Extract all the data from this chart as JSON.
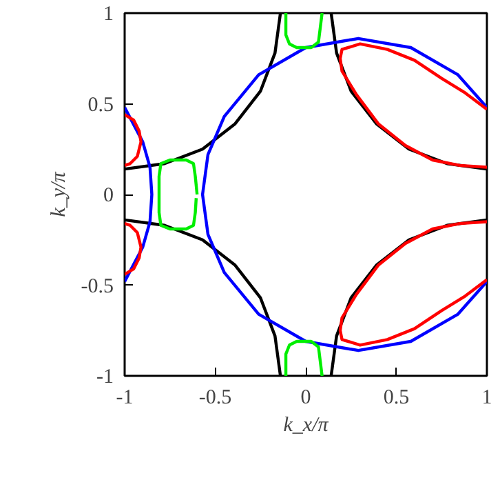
{
  "chart_data": {
    "type": "line",
    "xlabel": "k_x/π",
    "ylabel": "k_y/π",
    "xlim": [
      -1,
      1
    ],
    "ylim": [
      -1,
      1
    ],
    "xticks": [
      -1,
      -0.5,
      0,
      0.5,
      1
    ],
    "yticks": [
      -1,
      -0.5,
      0,
      0.5,
      1
    ],
    "grid": false,
    "marker": "none",
    "line_style": "solid",
    "series": [
      {
        "color": "#000000",
        "x": [
          -1,
          -0.78,
          -0.57,
          -0.39,
          -0.25,
          -0.17,
          -0.14,
          null,
          1,
          0.78,
          0.57,
          0.39,
          0.25,
          0.17,
          0.14,
          null,
          -1,
          -0.78,
          -0.57,
          -0.39,
          -0.25,
          -0.17,
          -0.14,
          null,
          1,
          0.78,
          0.57,
          0.39,
          0.25,
          0.17,
          0.14
        ],
        "values": [
          0.14,
          0.17,
          0.25,
          0.39,
          0.57,
          0.78,
          1,
          null,
          0.14,
          0.17,
          0.25,
          0.39,
          0.57,
          0.78,
          1,
          null,
          -0.14,
          -0.17,
          -0.25,
          -0.39,
          -0.57,
          -0.78,
          -1,
          null,
          -0.14,
          -0.17,
          -0.25,
          -0.39,
          -0.57,
          -0.78,
          -1
        ]
      },
      {
        "color": "#0000ff",
        "x": [
          1,
          0.84,
          0.58,
          0.29,
          0.0,
          -0.26,
          -0.45,
          -0.54,
          -0.57,
          -0.54,
          -0.45,
          -0.26,
          0.0,
          0.29,
          0.58,
          0.84,
          1,
          null,
          -1,
          -0.9,
          -0.86,
          -0.85,
          -0.86,
          -0.9,
          -1
        ],
        "values": [
          0.48,
          0.66,
          0.81,
          0.86,
          0.81,
          0.66,
          0.43,
          0.22,
          0,
          -0.22,
          -0.43,
          -0.66,
          -0.81,
          -0.86,
          -0.81,
          -0.66,
          -0.48,
          null,
          0.48,
          0.29,
          0.15,
          0,
          -0.15,
          -0.29,
          -0.48
        ]
      },
      {
        "color": "#ff0000",
        "x": [
          1,
          0.88,
          0.75,
          0.6,
          0.45,
          0.3,
          0.2,
          0.19,
          0.2,
          0.28,
          0.4,
          0.55,
          0.7,
          0.85,
          1,
          null,
          1,
          0.88,
          0.75,
          0.6,
          0.45,
          0.3,
          0.2,
          0.19,
          0.2,
          0.28,
          0.4,
          0.55,
          0.7,
          0.85,
          1,
          null,
          -1,
          -0.95,
          -0.92,
          -0.91,
          -0.93,
          -0.97,
          -1,
          null,
          -1,
          -0.95,
          -0.92,
          -0.91,
          -0.93,
          -0.97,
          -1
        ],
        "values": [
          0.47,
          0.56,
          0.64,
          0.74,
          0.8,
          0.83,
          0.8,
          0.75,
          0.68,
          0.55,
          0.39,
          0.27,
          0.19,
          0.16,
          0.15,
          null,
          -0.47,
          -0.56,
          -0.64,
          -0.74,
          -0.8,
          -0.83,
          -0.8,
          -0.75,
          -0.68,
          -0.55,
          -0.39,
          -0.27,
          -0.19,
          -0.16,
          -0.15,
          null,
          0.44,
          0.41,
          0.35,
          0.29,
          0.21,
          0.17,
          0.16,
          null,
          -0.44,
          -0.41,
          -0.35,
          -0.29,
          -0.21,
          -0.17,
          -0.16
        ]
      },
      {
        "color": "#00ee00",
        "x": [
          -0.6,
          -0.61,
          -0.62,
          -0.66,
          -0.75,
          -0.8,
          -0.81,
          -0.81,
          -0.8,
          -0.75,
          -0.66,
          -0.62,
          -0.61,
          -0.605,
          null,
          -0.11,
          -0.11,
          -0.09,
          -0.05,
          0.03,
          0.07,
          0.08,
          0.09,
          null,
          -0.11,
          -0.11,
          -0.09,
          -0.05,
          0.03,
          0.07,
          0.08,
          0.09
        ],
        "values": [
          0,
          0.1,
          0.17,
          0.19,
          0.19,
          0.17,
          0.1,
          -0.1,
          -0.17,
          -0.19,
          -0.19,
          -0.17,
          -0.1,
          -0.02,
          null,
          1,
          0.88,
          0.83,
          0.81,
          0.81,
          0.84,
          0.92,
          1,
          null,
          -1,
          -0.88,
          -0.83,
          -0.81,
          -0.81,
          -0.84,
          -0.92,
          -1
        ]
      }
    ]
  }
}
